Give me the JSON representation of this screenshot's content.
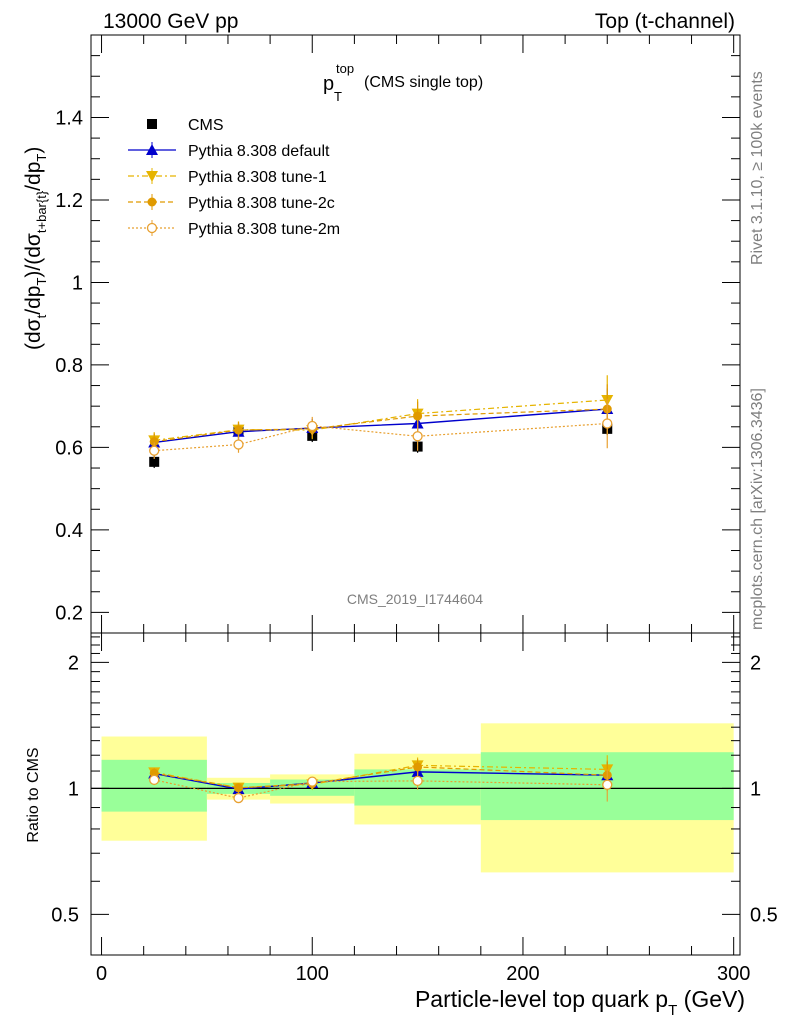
{
  "header": {
    "left": "13000 GeV pp",
    "right": "Top (t-channel)"
  },
  "side_labels": {
    "rivet": "Rivet 3.1.10, ≥ 100k events",
    "mcplots": "mcplots.cern.ch [arXiv:1306.3436]"
  },
  "plot_title": {
    "main": "p",
    "sup": "top",
    "sub": "T",
    "suffix": "(CMS single top)"
  },
  "watermark": "CMS_2019_I1744604",
  "colors": {
    "cms": "#000000",
    "default": "#0000cc",
    "tune1": "#e6b400",
    "tune2c": "#e09a00",
    "tune2m": "#e8a030",
    "band_inner": "#99ff99",
    "band_outer": "#ffff99"
  },
  "chart_data": [
    {
      "type": "scatter",
      "panel": "main",
      "ylabel": "(dσt/dpT)/(dσt+bar{t}/dpT)",
      "ylim": [
        0.15,
        1.6
      ],
      "yticks": [
        "0.2",
        "0.4",
        "0.6",
        "0.8",
        "1",
        "1.2",
        "1.4"
      ],
      "xlim": [
        -5,
        303
      ],
      "bins": [
        [
          0,
          50
        ],
        [
          50,
          80
        ],
        [
          80,
          120
        ],
        [
          120,
          180
        ],
        [
          180,
          300
        ]
      ],
      "x": [
        25,
        65,
        100,
        150,
        240
      ],
      "series": [
        {
          "name": "CMS",
          "marker": "square",
          "values": [
            0.565,
            0.64,
            0.628,
            0.602,
            0.645
          ],
          "errors": [
            0.015,
            0.015,
            0.015,
            0.015,
            0.015
          ]
        },
        {
          "name": "Pythia 8.308 default",
          "marker": "triangle-up",
          "values": [
            0.612,
            0.638,
            0.647,
            0.658,
            0.693
          ],
          "errors": [
            0.02,
            0.02,
            0.022,
            0.03,
            0.05
          ]
        },
        {
          "name": "Pythia 8.308 tune-1",
          "marker": "triangle-down",
          "values": [
            0.617,
            0.643,
            0.642,
            0.682,
            0.715
          ],
          "errors": [
            0.02,
            0.02,
            0.022,
            0.035,
            0.06
          ]
        },
        {
          "name": "Pythia 8.308 tune-2c",
          "marker": "circle",
          "values": [
            0.614,
            0.642,
            0.645,
            0.676,
            0.693
          ],
          "errors": [
            0.02,
            0.02,
            0.022,
            0.035,
            0.06
          ]
        },
        {
          "name": "Pythia 8.308 tune-2m",
          "marker": "open-circle",
          "values": [
            0.592,
            0.607,
            0.652,
            0.627,
            0.658
          ],
          "errors": [
            0.02,
            0.02,
            0.022,
            0.035,
            0.06
          ]
        }
      ]
    },
    {
      "type": "scatter",
      "panel": "ratio",
      "ylabel": "Ratio to CMS",
      "xlabel": "Particle-level top quark pT (GeV)",
      "ylim": [
        0.4,
        2.35
      ],
      "log_y": true,
      "yticks": [
        "0.5",
        "1",
        "2"
      ],
      "xticks": [
        "0",
        "100",
        "200",
        "300"
      ],
      "xlim": [
        -5,
        303
      ],
      "bands": [
        {
          "x": [
            0,
            50
          ],
          "inner": [
            0.88,
            1.17
          ],
          "outer": [
            0.75,
            1.33
          ]
        },
        {
          "x": [
            50,
            80
          ],
          "inner": [
            0.97,
            1.03
          ],
          "outer": [
            0.94,
            1.06
          ]
        },
        {
          "x": [
            80,
            120
          ],
          "inner": [
            0.96,
            1.05
          ],
          "outer": [
            0.92,
            1.08
          ]
        },
        {
          "x": [
            120,
            180
          ],
          "inner": [
            0.91,
            1.11
          ],
          "outer": [
            0.82,
            1.21
          ]
        },
        {
          "x": [
            180,
            300
          ],
          "inner": [
            0.84,
            1.22
          ],
          "outer": [
            0.63,
            1.43
          ]
        }
      ],
      "x": [
        25,
        65,
        100,
        150,
        240
      ],
      "series": [
        {
          "name": "Pythia 8.308 default",
          "values": [
            1.085,
            0.996,
            1.03,
            1.095,
            1.075
          ],
          "errors": [
            0.03,
            0.02,
            0.02,
            0.04,
            0.08
          ]
        },
        {
          "name": "Pythia 8.308 tune-1",
          "values": [
            1.092,
            1.004,
            1.022,
            1.135,
            1.11
          ],
          "errors": [
            0.03,
            0.02,
            0.02,
            0.05,
            0.09
          ]
        },
        {
          "name": "Pythia 8.308 tune-2c",
          "values": [
            1.087,
            1.003,
            1.027,
            1.125,
            1.075
          ],
          "errors": [
            0.03,
            0.02,
            0.02,
            0.05,
            0.09
          ]
        },
        {
          "name": "Pythia 8.308 tune-2m",
          "values": [
            1.048,
            0.948,
            1.038,
            1.042,
            1.02
          ],
          "errors": [
            0.03,
            0.02,
            0.02,
            0.05,
            0.09
          ]
        }
      ]
    }
  ]
}
